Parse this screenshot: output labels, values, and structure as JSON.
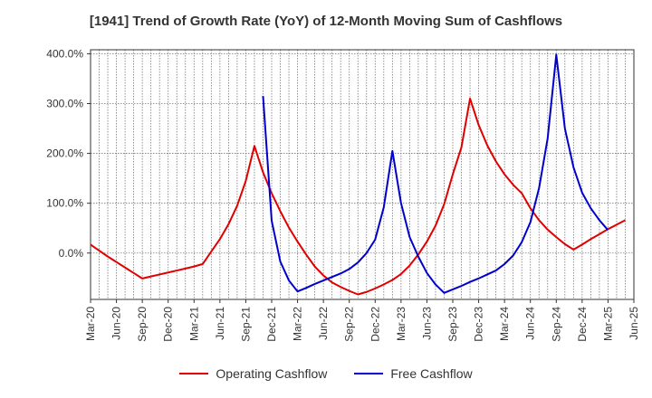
{
  "chart_data": {
    "type": "line",
    "title": "[1941]  Trend of Growth Rate (YoY) of 12-Month Moving Sum of Cashflows",
    "xlabel": "",
    "ylabel": "",
    "x_tick_labels": [
      "Mar-20",
      "Jun-20",
      "Sep-20",
      "Dec-20",
      "Mar-21",
      "Jun-21",
      "Sep-21",
      "Dec-21",
      "Mar-22",
      "Jun-22",
      "Sep-22",
      "Dec-22",
      "Mar-23",
      "Jun-23",
      "Sep-23",
      "Dec-23",
      "Mar-24",
      "Jun-24",
      "Sep-24",
      "Dec-24",
      "Mar-25",
      "Jun-25"
    ],
    "y_ticks": [
      0,
      100,
      200,
      300,
      400
    ],
    "y_tick_labels": [
      "0.0%",
      "100.0%",
      "200.0%",
      "300.0%",
      "400.0%"
    ],
    "ylim": [
      -93,
      408
    ],
    "grid": true,
    "legend_position": "bottom",
    "series": [
      {
        "name": "Operating Cashflow",
        "color": "#e00000",
        "start_month": "Mar-20",
        "values": [
          17,
          5,
          -7,
          -18,
          -29,
          -40,
          -51,
          -47,
          -43,
          -39,
          -35,
          -31,
          -27,
          -22,
          3,
          28,
          58,
          95,
          145,
          215,
          162,
          120,
          84,
          51,
          23,
          -3,
          -27,
          -45,
          -59,
          -68,
          -76,
          -83,
          -78,
          -71,
          -63,
          -54,
          -42,
          -25,
          -3,
          23,
          55,
          98,
          158,
          212,
          310,
          257,
          216,
          184,
          158,
          137,
          120,
          90,
          66,
          47,
          32,
          18,
          7,
          17,
          28,
          38,
          48,
          57,
          66
        ]
      },
      {
        "name": "Free Cashflow",
        "color": "#0000cc",
        "start_month": "Sep-21",
        "values": [
          null,
          null,
          315,
          65,
          -17,
          -55,
          -77,
          -70,
          -62,
          -55,
          -48,
          -41,
          -32,
          -19,
          0,
          27,
          92,
          205,
          100,
          32,
          -7,
          -40,
          -63,
          -80,
          -73,
          -66,
          -58,
          -51,
          -43,
          -35,
          -22,
          -5,
          22,
          62,
          130,
          230,
          398,
          250,
          172,
          121,
          90,
          66,
          46
        ]
      }
    ]
  }
}
